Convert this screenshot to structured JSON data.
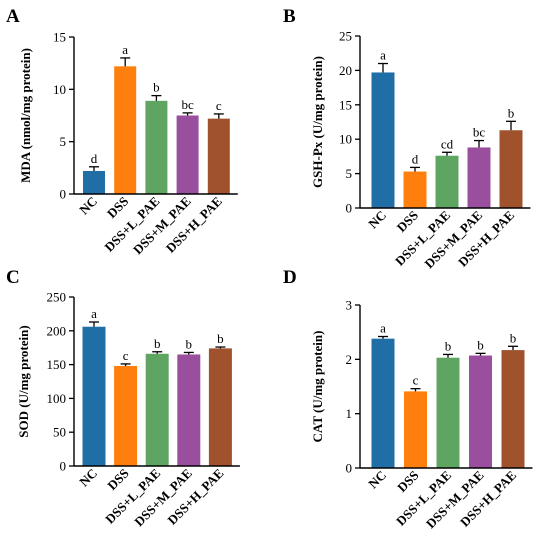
{
  "chart_data": [
    {
      "panel": "A",
      "type": "bar",
      "ylabel": "MDA (nmol/mg protein)",
      "categories": [
        "NC",
        "DSS",
        "DSS+L_PAE",
        "DSS+M_PAE",
        "DSS+H_PAE"
      ],
      "values": [
        2.2,
        12.2,
        8.9,
        7.5,
        7.2
      ],
      "errors": [
        0.4,
        0.8,
        0.5,
        0.25,
        0.45
      ],
      "letters": [
        "d",
        "a",
        "b",
        "bc",
        "c"
      ],
      "ylim": [
        0,
        15
      ],
      "yticks": [
        0,
        5,
        10,
        15
      ],
      "colors": [
        "#1f6ea5",
        "#ff7f0e",
        "#5fa562",
        "#9a4f9e",
        "#a0522d"
      ]
    },
    {
      "panel": "B",
      "type": "bar",
      "ylabel": "GSH-Px (U/mg protein)",
      "categories": [
        "NC",
        "DSS",
        "DSS+L_PAE",
        "DSS+M_PAE",
        "DSS+H_PAE"
      ],
      "values": [
        19.7,
        5.3,
        7.6,
        8.8,
        11.3
      ],
      "errors": [
        1.3,
        0.6,
        0.5,
        1.0,
        1.3
      ],
      "letters": [
        "a",
        "d",
        "cd",
        "bc",
        "b"
      ],
      "ylim": [
        0,
        25
      ],
      "yticks": [
        0,
        5,
        10,
        15,
        20,
        25
      ],
      "colors": [
        "#1f6ea5",
        "#ff7f0e",
        "#5fa562",
        "#9a4f9e",
        "#a0522d"
      ]
    },
    {
      "panel": "C",
      "type": "bar",
      "ylabel": "SOD (U/mg protein)",
      "categories": [
        "NC",
        "DSS",
        "DSS+L_PAE",
        "DSS+M_PAE",
        "DSS+H_PAE"
      ],
      "values": [
        206,
        148,
        166,
        165,
        174
      ],
      "errors": [
        7,
        3,
        3,
        3,
        2
      ],
      "letters": [
        "a",
        "c",
        "b",
        "b",
        "b"
      ],
      "ylim": [
        0,
        250
      ],
      "yticks": [
        0,
        50,
        100,
        150,
        200,
        250
      ],
      "colors": [
        "#1f6ea5",
        "#ff7f0e",
        "#5fa562",
        "#9a4f9e",
        "#a0522d"
      ]
    },
    {
      "panel": "D",
      "type": "bar",
      "ylabel": "CAT (U/mg protein)",
      "categories": [
        "NC",
        "DSS",
        "DSS+L_PAE",
        "DSS+M_PAE",
        "DSS+H_PAE"
      ],
      "values": [
        2.38,
        1.41,
        2.03,
        2.07,
        2.17
      ],
      "errors": [
        0.04,
        0.05,
        0.06,
        0.04,
        0.07
      ],
      "letters": [
        "a",
        "c",
        "b",
        "b",
        "b"
      ],
      "ylim": [
        0,
        3
      ],
      "yticks": [
        0,
        1,
        2,
        3
      ],
      "colors": [
        "#1f6ea5",
        "#ff7f0e",
        "#5fa562",
        "#9a4f9e",
        "#a0522d"
      ]
    }
  ]
}
